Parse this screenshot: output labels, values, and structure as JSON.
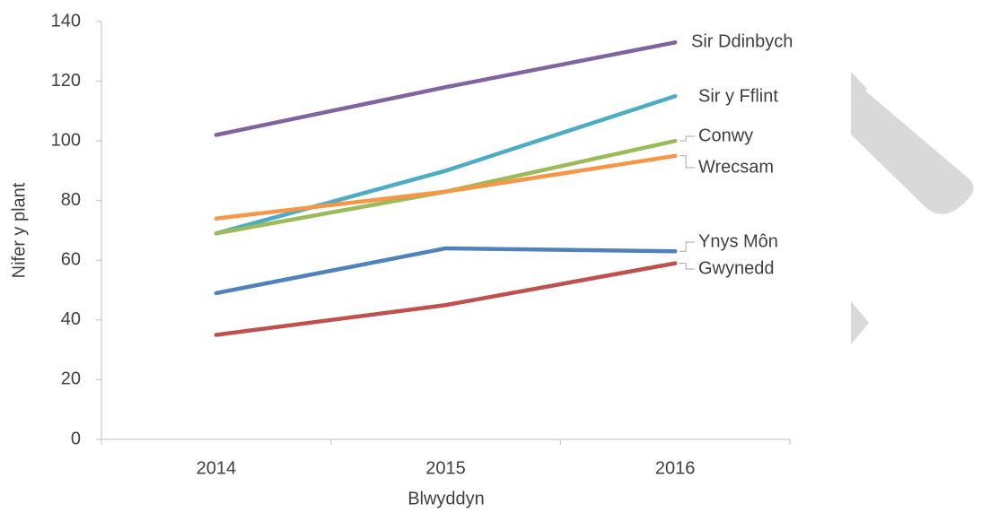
{
  "chart_data": {
    "type": "line",
    "x_label": "Blwyddyn",
    "y_label": "Nifer y plant",
    "categories": [
      "2014",
      "2015",
      "2016"
    ],
    "series": [
      {
        "name": "Sir Ddinbych",
        "color": "#8064a2",
        "values": [
          102,
          118,
          133
        ]
      },
      {
        "name": "Sir y Fflint",
        "color": "#4bacc6",
        "values": [
          69,
          90,
          115
        ]
      },
      {
        "name": "Conwy",
        "color": "#9bbb59",
        "values": [
          69,
          83,
          100
        ]
      },
      {
        "name": "Wrecsam",
        "color": "#f79646",
        "values": [
          74,
          83,
          95
        ]
      },
      {
        "name": "Ynys Môn",
        "color": "#4f81bd",
        "values": [
          49,
          64,
          63
        ]
      },
      {
        "name": "Gwynedd",
        "color": "#c0504d",
        "values": [
          35,
          45,
          59
        ]
      }
    ],
    "ylim": [
      0,
      140
    ],
    "yticks": [
      0,
      20,
      40,
      60,
      80,
      100,
      120,
      140
    ],
    "grid": false
  }
}
